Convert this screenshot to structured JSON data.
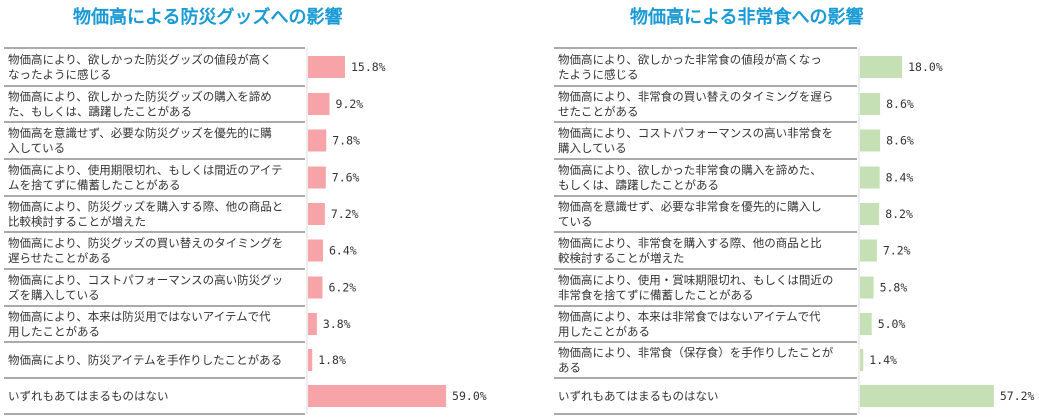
{
  "colors": {
    "title": "#1a9bd6",
    "bar_left": "#f7a4a8",
    "bar_right": "#c5e0b4",
    "divider": "#555555",
    "text": "#333333"
  },
  "chart_data": [
    {
      "type": "bar",
      "orientation": "horizontal",
      "title": "物価高による防災グッズへの影響",
      "unit": "%",
      "categories": [
        [
          "物価高により、欲しかった防災グッズの値段が高く",
          "なったように感じる"
        ],
        [
          "物価高により、欲しかった防災グッズの購入を諦め",
          "た、もしくは、躊躇したことがある"
        ],
        [
          "物価高を意識せず、必要な防災グッズを優先的に購",
          "入している"
        ],
        [
          "物価高により、使用期限切れ、もしくは間近のアイテ",
          "ムを捨てずに備蓄したことがある"
        ],
        [
          "物価高により、防災グッズを購入する際、他の商品と",
          "比較検討することが増えた"
        ],
        [
          "物価高により、防災グッズの買い替えのタイミングを",
          "遅らせたことがある"
        ],
        [
          "物価高により、コストパフォーマンスの高い防災グッ",
          "ズを購入している"
        ],
        [
          "物価高により、本来は防災用ではないアイテムで代",
          "用したことがある"
        ],
        [
          "物価高により、防災アイテムを手作りしたことがある"
        ],
        [
          "いずれもあてはまるものはない"
        ]
      ],
      "values": [
        15.8,
        9.2,
        7.8,
        7.6,
        7.2,
        6.4,
        6.2,
        3.8,
        1.8,
        59.0
      ],
      "value_labels": [
        "15.8%",
        "9.2%",
        "7.8%",
        "7.6%",
        "7.2%",
        "6.4%",
        "6.2%",
        "3.8%",
        "1.8%",
        "59.0%"
      ],
      "xlim": [
        0,
        100
      ]
    },
    {
      "type": "bar",
      "orientation": "horizontal",
      "title": "物価高による非常食への影響",
      "unit": "%",
      "categories": [
        [
          "物価高により、欲しかった非常食の値段が高くなっ",
          "たように感じる"
        ],
        [
          "物価高により、非常食の買い替えのタイミングを遅ら",
          "せたことがある"
        ],
        [
          "物価高により、コストパフォーマンスの高い非常食を",
          "購入している"
        ],
        [
          "物価高により、欲しかった非常食の購入を諦めた、",
          "もしくは、躊躇したことがある"
        ],
        [
          "物価高を意識せず、必要な非常食を優先的に購入し",
          "ている"
        ],
        [
          "物価高により、非常食を購入する際、他の商品と比",
          "較検討することが増えた"
        ],
        [
          "物価高により、使用・賞味期限切れ、もしくは間近の",
          "非常食を捨てずに備蓄したことがある"
        ],
        [
          "物価高により、本来は非常食ではないアイテムで代",
          "用したことがある"
        ],
        [
          "物価高により、非常食（保存食）を手作りしたことが",
          "ある"
        ],
        [
          "いずれもあてはまるものはない"
        ]
      ],
      "values": [
        18.0,
        8.6,
        8.6,
        8.4,
        8.2,
        7.2,
        5.8,
        5.0,
        1.4,
        57.2
      ],
      "value_labels": [
        "18.0%",
        "8.6%",
        "8.6%",
        "8.4%",
        "8.2%",
        "7.2%",
        "5.8%",
        "5.0%",
        "1.4%",
        "57.2%"
      ],
      "xlim": [
        0,
        100
      ]
    }
  ]
}
